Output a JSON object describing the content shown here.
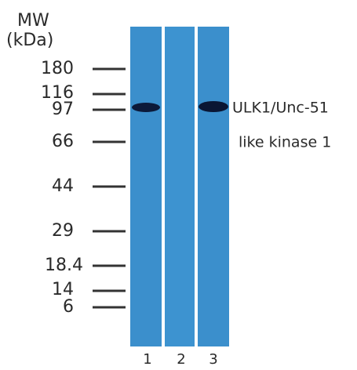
{
  "header": {
    "line1": "MW",
    "line2": "(kDa)"
  },
  "markers": [
    "180",
    "116",
    "97",
    "66",
    "44",
    "29",
    "18.4",
    "14",
    "6"
  ],
  "lanes": [
    "1",
    "2",
    "3"
  ],
  "band_label": {
    "line1": "ULK1/Unc-51",
    "line2": "like kinase 1"
  }
}
